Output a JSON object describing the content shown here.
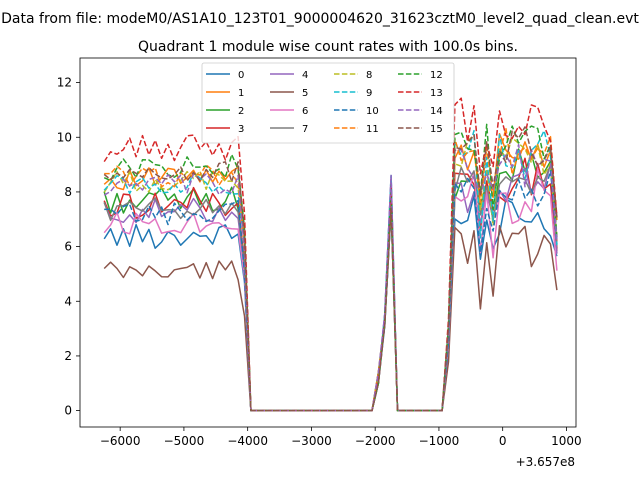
{
  "chart_data": {
    "type": "line",
    "suptitle": "Data from file: modeM0/AS1A10_123T01_9000004620_31623cztM0_level2_quad_clean.evt",
    "title": "Quadrant 1 module wise count rates with 100.0s bins.",
    "xlabel": "",
    "ylabel": "",
    "x_offset_label": "+3.657e8",
    "xlim": [
      -6630,
      1150
    ],
    "ylim": [
      -0.6,
      12.9
    ],
    "xticks": [
      -6000,
      -5000,
      -4000,
      -3000,
      -2000,
      -1000,
      0,
      1000
    ],
    "xtick_labels": [
      "−6000",
      "−5000",
      "−4000",
      "−3000",
      "−2000",
      "−1000",
      "0",
      "1000"
    ],
    "yticks": [
      0,
      2,
      4,
      6,
      8,
      10,
      12
    ],
    "ytick_labels": [
      "0",
      "2",
      "4",
      "6",
      "8",
      "10",
      "12"
    ],
    "legend": {
      "placement": "upper center",
      "columns": 4
    },
    "x": [
      -6250,
      -6150,
      -6050,
      -5950,
      -5850,
      -5750,
      -5650,
      -5550,
      -5450,
      -5350,
      -5250,
      -5150,
      -5050,
      -4950,
      -4850,
      -4750,
      -4650,
      -4550,
      -4450,
      -4350,
      -4250,
      -4150,
      -4050,
      -3950,
      -3850,
      -3750,
      -3650,
      -3550,
      -3450,
      -3350,
      -3250,
      -3150,
      -3050,
      -2950,
      -2850,
      -2750,
      -2650,
      -2550,
      -2450,
      -2350,
      -2250,
      -2150,
      -2050,
      -1950,
      -1850,
      -1750,
      -1650,
      -1550,
      -1450,
      -1350,
      -1250,
      -1150,
      -1050,
      -950,
      -850,
      -750,
      -650,
      -550,
      -450,
      -350,
      -250,
      -150,
      -50,
      50,
      150,
      250,
      350,
      450,
      550,
      650,
      750,
      850
    ],
    "active_windows": [
      [
        -6250,
        -4050
      ],
      [
        -1950,
        -1750
      ],
      [
        -850,
        850
      ]
    ],
    "series": [
      {
        "name": "0",
        "color": "#1f77b4",
        "dash": "solid",
        "base": 6.4,
        "amp": 0.45
      },
      {
        "name": "1",
        "color": "#ff7f0e",
        "dash": "solid",
        "base": 8.5,
        "amp": 0.4
      },
      {
        "name": "2",
        "color": "#2ca02c",
        "dash": "solid",
        "base": 7.7,
        "amp": 0.45
      },
      {
        "name": "3",
        "color": "#d62728",
        "dash": "solid",
        "base": 7.6,
        "amp": 0.55
      },
      {
        "name": "4",
        "color": "#9467bd",
        "dash": "solid",
        "base": 7.3,
        "amp": 0.45
      },
      {
        "name": "5",
        "color": "#8c564b",
        "dash": "solid",
        "base": 5.1,
        "amp": 0.4
      },
      {
        "name": "6",
        "color": "#e377c2",
        "dash": "solid",
        "base": 6.9,
        "amp": 0.45
      },
      {
        "name": "7",
        "color": "#7f7f7f",
        "dash": "solid",
        "base": 7.4,
        "amp": 0.4
      },
      {
        "name": "8",
        "color": "#bcbd22",
        "dash": "dashed",
        "base": 8.4,
        "amp": 0.4
      },
      {
        "name": "9",
        "color": "#17becf",
        "dash": "dashed",
        "base": 8.3,
        "amp": 0.45
      },
      {
        "name": "10",
        "color": "#1f77b4",
        "dash": "dashed",
        "base": 7.2,
        "amp": 0.45
      },
      {
        "name": "11",
        "color": "#ff7f0e",
        "dash": "dashed",
        "base": 8.6,
        "amp": 0.45
      },
      {
        "name": "12",
        "color": "#2ca02c",
        "dash": "dashed",
        "base": 8.9,
        "amp": 0.45
      },
      {
        "name": "13",
        "color": "#d62728",
        "dash": "dashed",
        "base": 9.6,
        "amp": 0.5
      },
      {
        "name": "14",
        "color": "#9467bd",
        "dash": "dashed",
        "base": 8.2,
        "amp": 0.45
      },
      {
        "name": "15",
        "color": "#8c564b",
        "dash": "dashed",
        "base": 8.7,
        "amp": 0.4
      }
    ]
  }
}
